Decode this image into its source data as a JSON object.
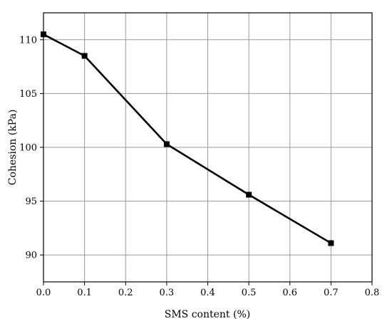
{
  "chart_data": {
    "type": "line",
    "title": "",
    "xlabel": "SMS content (%)",
    "ylabel": "Cohesion (kPa)",
    "xlim": [
      0,
      0.8
    ],
    "ylim": [
      87.5,
      112.5
    ],
    "xticks": [
      "0.0",
      "0.1",
      "0.2",
      "0.3",
      "0.4",
      "0.5",
      "0.6",
      "0.7",
      "0.8"
    ],
    "yticks": [
      "90",
      "95",
      "100",
      "105",
      "110"
    ],
    "grid": true,
    "legend": "none",
    "series": [
      {
        "x": [
          0.0,
          0.1,
          0.3,
          0.5,
          0.7
        ],
        "y": [
          110.5,
          108.5,
          100.3,
          95.6,
          91.1
        ],
        "marker": "square",
        "color": "#000000"
      }
    ]
  }
}
